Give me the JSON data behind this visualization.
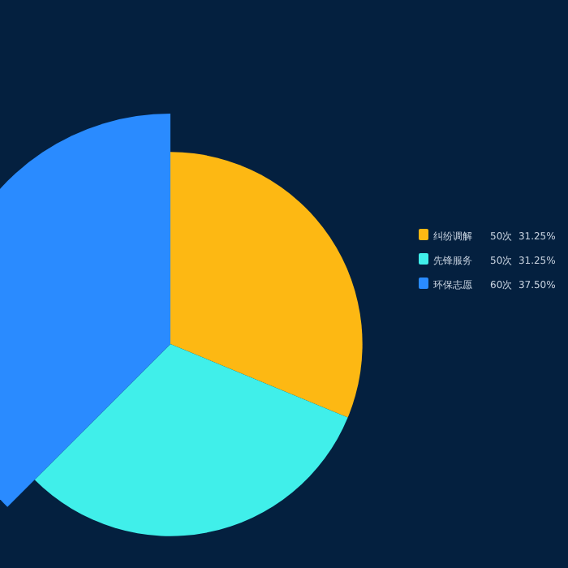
{
  "chart_data": {
    "type": "pie",
    "categories": [
      "纠纷调解",
      "先锋服务",
      "环保志愿"
    ],
    "values": [
      50,
      50,
      60
    ],
    "colors": [
      "#fdb813",
      "#40efea",
      "#2a8bff"
    ],
    "value_labels": [
      "50次  31.25%",
      "50次  31.25%",
      "60次  37.50%"
    ],
    "legend": "right"
  }
}
